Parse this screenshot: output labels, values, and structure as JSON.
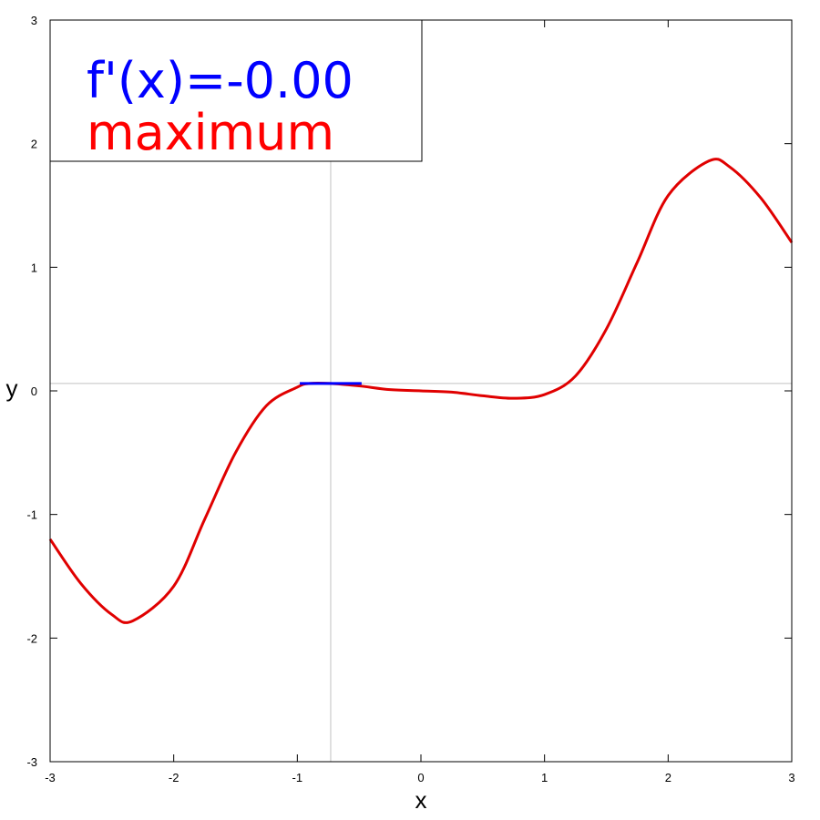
{
  "chart_data": {
    "type": "line",
    "title": "",
    "xlabel": "x",
    "ylabel": "y",
    "xlim": [
      -3,
      3
    ],
    "ylim": [
      -3,
      3
    ],
    "xticks": [
      -3,
      -2,
      -1,
      0,
      1,
      2,
      3
    ],
    "yticks": [
      -3,
      -2,
      -1,
      0,
      1,
      2,
      3
    ],
    "grid": false,
    "series": [
      {
        "color": "#e00000",
        "x": [
          -3.0,
          -2.75,
          -2.5,
          -2.33,
          -2.0,
          -1.75,
          -1.5,
          -1.25,
          -1.0,
          -0.9,
          -0.73,
          -0.5,
          -0.25,
          0.0,
          0.25,
          0.5,
          0.75,
          1.0,
          1.25,
          1.5,
          1.75,
          2.0,
          2.33,
          2.5,
          2.75,
          3.0
        ],
        "y": [
          -1.2,
          -1.56,
          -1.81,
          -1.86,
          -1.58,
          -1.04,
          -0.5,
          -0.12,
          0.03,
          0.06,
          0.06,
          0.04,
          0.01,
          0.0,
          -0.01,
          -0.04,
          -0.06,
          -0.03,
          0.12,
          0.5,
          1.04,
          1.58,
          1.86,
          1.81,
          1.56,
          1.2
        ]
      }
    ],
    "marker_point": {
      "x": -0.73,
      "y": 0.06
    },
    "tangent": {
      "x_from": -0.98,
      "x_to": -0.48,
      "y": 0.06,
      "color": "#0000ff"
    }
  },
  "legend": {
    "derivative_text": "f'(x)=-0.00",
    "derivative_color": "#0000ff",
    "extremum_text": "maximum",
    "extremum_color": "#ff0000"
  },
  "colors": {
    "crosshair": "#c0c0c0",
    "axes": "#000000"
  }
}
